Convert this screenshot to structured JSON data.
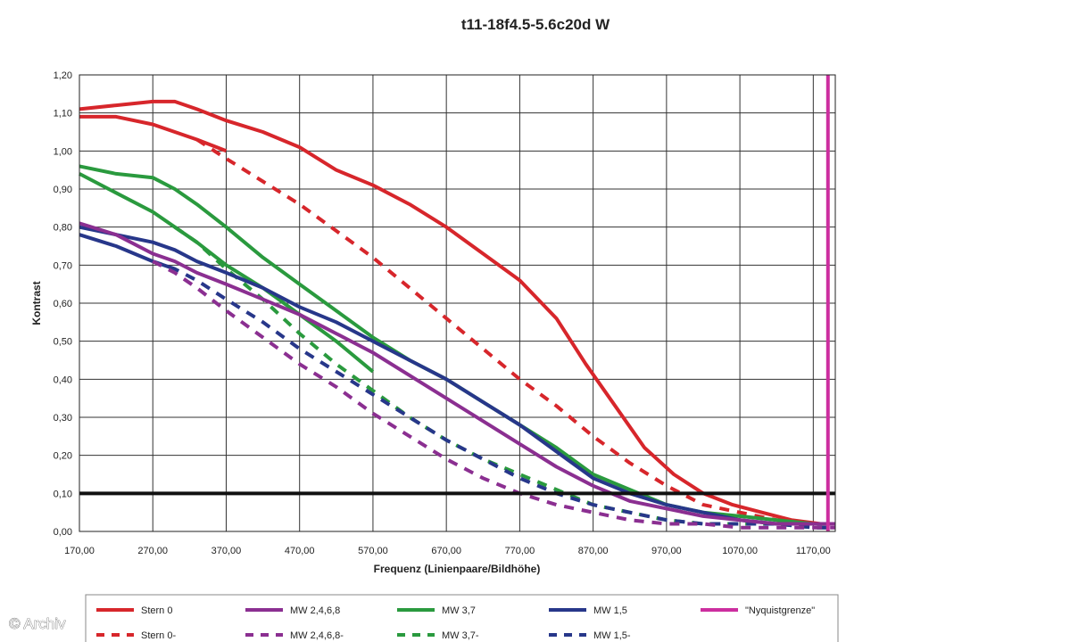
{
  "credit": "© Archiv",
  "chart_data": {
    "type": "line",
    "title": "t11-18f4.5-5.6c20d W",
    "xlabel": "Frequenz (Linienpaare/Bildhöhe)",
    "ylabel": "Kontrast",
    "xlim": [
      170,
      1200
    ],
    "ylim": [
      0,
      1.2
    ],
    "x_ticks": [
      170,
      270,
      370,
      470,
      570,
      670,
      770,
      870,
      970,
      1070,
      1170
    ],
    "x_tick_labels": [
      "170,00",
      "270,00",
      "370,00",
      "470,00",
      "570,00",
      "670,00",
      "770,00",
      "870,00",
      "970,00",
      "1070,00",
      "1170,00"
    ],
    "y_ticks": [
      0,
      0.1,
      0.2,
      0.3,
      0.4,
      0.5,
      0.6,
      0.7,
      0.8,
      0.9,
      1.0,
      1.1,
      1.2
    ],
    "y_tick_labels": [
      "0,00",
      "0,10",
      "0,20",
      "0,30",
      "0,40",
      "0,50",
      "0,60",
      "0,70",
      "0,80",
      "0,90",
      "1,00",
      "1,10",
      "1,20"
    ],
    "grid": true,
    "legend_position": "bottom",
    "reference_lines": [
      {
        "orientation": "horizontal",
        "value": 0.1,
        "color": "#111111"
      },
      {
        "orientation": "vertical",
        "value": 1190,
        "color": "#cc2e9f"
      }
    ],
    "series": [
      {
        "name": "Stern 0",
        "color": "#d7262b",
        "dash": false,
        "x": [
          170,
          220,
          270,
          300,
          330,
          370,
          420,
          470,
          520,
          570,
          620,
          670,
          720,
          770,
          820,
          860,
          900,
          940,
          980,
          1020,
          1060,
          1100,
          1140,
          1180,
          1200
        ],
        "y": [
          1.11,
          1.12,
          1.13,
          1.13,
          1.11,
          1.08,
          1.05,
          1.01,
          0.95,
          0.91,
          0.86,
          0.8,
          0.73,
          0.66,
          0.56,
          0.44,
          0.33,
          0.22,
          0.15,
          0.1,
          0.07,
          0.05,
          0.03,
          0.02,
          0.02
        ]
      },
      {
        "name": "Stern 0",
        "color": "#d7262b",
        "dash": false,
        "x": [
          170,
          220,
          270,
          300,
          330,
          370
        ],
        "y": [
          1.09,
          1.09,
          1.07,
          1.05,
          1.03,
          1.0
        ]
      },
      {
        "name": "Stern 0-",
        "color": "#d7262b",
        "dash": true,
        "x": [
          330,
          370,
          420,
          470,
          520,
          570,
          620,
          670,
          720,
          770,
          820,
          870,
          920,
          970,
          1020,
          1070,
          1120,
          1170,
          1200
        ],
        "y": [
          1.03,
          0.98,
          0.92,
          0.86,
          0.79,
          0.72,
          0.64,
          0.56,
          0.48,
          0.4,
          0.33,
          0.25,
          0.18,
          0.12,
          0.07,
          0.05,
          0.03,
          0.02,
          0.02
        ]
      },
      {
        "name": "MW 3,7",
        "color": "#2a9a3e",
        "dash": false,
        "x": [
          170,
          220,
          270,
          300,
          330,
          370,
          420,
          470,
          520,
          570,
          620,
          670,
          720,
          770,
          820,
          870,
          920,
          970,
          1020,
          1070,
          1120,
          1170,
          1200
        ],
        "y": [
          0.96,
          0.94,
          0.93,
          0.9,
          0.86,
          0.8,
          0.72,
          0.65,
          0.58,
          0.51,
          0.45,
          0.4,
          0.34,
          0.28,
          0.22,
          0.15,
          0.11,
          0.07,
          0.05,
          0.04,
          0.03,
          0.02,
          0.02
        ]
      },
      {
        "name": "MW 3,7",
        "color": "#2a9a3e",
        "dash": false,
        "x": [
          170,
          220,
          270,
          300,
          330,
          370,
          420,
          470,
          520,
          570
        ],
        "y": [
          0.94,
          0.89,
          0.84,
          0.8,
          0.76,
          0.7,
          0.64,
          0.57,
          0.5,
          0.42
        ]
      },
      {
        "name": "MW 3,7-",
        "color": "#2a9a3e",
        "dash": true,
        "x": [
          300,
          330,
          370,
          420,
          470,
          520,
          570,
          620,
          670,
          720,
          770,
          820,
          870,
          920,
          970,
          1020,
          1070,
          1120,
          1170,
          1200
        ],
        "y": [
          0.8,
          0.76,
          0.69,
          0.61,
          0.52,
          0.44,
          0.37,
          0.3,
          0.24,
          0.19,
          0.15,
          0.11,
          0.07,
          0.05,
          0.03,
          0.02,
          0.02,
          0.02,
          0.01,
          0.01
        ]
      },
      {
        "name": "MW 1,5",
        "color": "#27378a",
        "dash": false,
        "x": [
          170,
          220,
          270,
          300,
          330,
          370,
          420,
          470,
          520,
          570,
          620,
          670,
          720,
          770,
          820,
          870,
          920,
          970,
          1020,
          1070,
          1120,
          1170,
          1200
        ],
        "y": [
          0.8,
          0.78,
          0.76,
          0.74,
          0.71,
          0.68,
          0.64,
          0.59,
          0.55,
          0.5,
          0.45,
          0.4,
          0.34,
          0.28,
          0.21,
          0.14,
          0.1,
          0.07,
          0.05,
          0.03,
          0.02,
          0.02,
          0.02
        ]
      },
      {
        "name": "MW 1,5",
        "color": "#27378a",
        "dash": false,
        "x": [
          170,
          220,
          270,
          300
        ],
        "y": [
          0.78,
          0.75,
          0.71,
          0.69
        ]
      },
      {
        "name": "MW 1,5-",
        "color": "#27378a",
        "dash": true,
        "x": [
          270,
          300,
          330,
          370,
          420,
          470,
          520,
          570,
          620,
          670,
          720,
          770,
          820,
          870,
          920,
          970,
          1020,
          1070,
          1120,
          1170,
          1200
        ],
        "y": [
          0.71,
          0.69,
          0.66,
          0.61,
          0.55,
          0.48,
          0.42,
          0.36,
          0.3,
          0.24,
          0.19,
          0.14,
          0.1,
          0.07,
          0.05,
          0.03,
          0.02,
          0.02,
          0.02,
          0.01,
          0.01
        ]
      },
      {
        "name": "MW 2,4,6,8",
        "color": "#8b2f91",
        "dash": false,
        "x": [
          170,
          220,
          270,
          300,
          330,
          370,
          420,
          470,
          520,
          570,
          620,
          670,
          720,
          770,
          820,
          870,
          920,
          970,
          1020,
          1070,
          1120,
          1170,
          1200
        ],
        "y": [
          0.81,
          0.78,
          0.73,
          0.71,
          0.68,
          0.65,
          0.61,
          0.57,
          0.52,
          0.47,
          0.41,
          0.35,
          0.29,
          0.23,
          0.17,
          0.12,
          0.08,
          0.06,
          0.04,
          0.03,
          0.02,
          0.02,
          0.02
        ]
      },
      {
        "name": "MW 2,4,6,8-",
        "color": "#8b2f91",
        "dash": true,
        "x": [
          270,
          300,
          330,
          370,
          420,
          470,
          520,
          570,
          620,
          670,
          720,
          770,
          820,
          870,
          920,
          970,
          1020,
          1070,
          1120,
          1170,
          1200
        ],
        "y": [
          0.71,
          0.68,
          0.64,
          0.58,
          0.51,
          0.44,
          0.38,
          0.31,
          0.25,
          0.19,
          0.14,
          0.1,
          0.07,
          0.05,
          0.03,
          0.02,
          0.02,
          0.01,
          0.01,
          0.01,
          0.01
        ]
      }
    ],
    "legend": [
      {
        "label": "Stern 0",
        "color": "#d7262b",
        "dash": false
      },
      {
        "label": "MW 2,4,6,8",
        "color": "#8b2f91",
        "dash": false
      },
      {
        "label": "MW 3,7",
        "color": "#2a9a3e",
        "dash": false
      },
      {
        "label": "MW 1,5",
        "color": "#27378a",
        "dash": false
      },
      {
        "label": "\"Nyquistgrenze\"",
        "color": "#cc2e9f",
        "dash": false
      },
      {
        "label": "Stern 0-",
        "color": "#d7262b",
        "dash": true
      },
      {
        "label": "MW 2,4,6,8-",
        "color": "#8b2f91",
        "dash": true
      },
      {
        "label": "MW 3,7-",
        "color": "#2a9a3e",
        "dash": true
      },
      {
        "label": "MW 1,5-",
        "color": "#27378a",
        "dash": true
      }
    ]
  }
}
